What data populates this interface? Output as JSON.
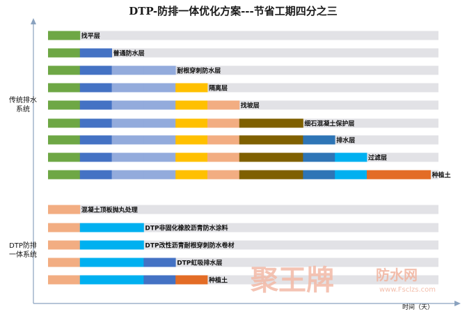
{
  "title": "DTP-防排一体优化方案---节省工期四分之三",
  "x_axis_label": "时间（天）",
  "group_labels": {
    "traditional": [
      "传统排水",
      "系统"
    ],
    "dtp": [
      "DTP防排",
      "一体系统"
    ]
  },
  "colors": {
    "track": "#e2e2e6",
    "axis": "#8aa2bf",
    "green": "#6ea745",
    "blue": "#4472c4",
    "lightblue": "#93abdc",
    "yellow": "#ffc000",
    "salmon": "#f2ad82",
    "olive": "#7f6000",
    "steel": "#2e75b6",
    "cyan": "#00b0f0",
    "orange": "#e36c26"
  },
  "watermark": {
    "brand": "聚王牌",
    "suffix": "防水网",
    "url": "www.Fsclzs.com"
  },
  "chart_data": {
    "type": "stacked-horizontal-bar (gantt)",
    "title": "DTP-防排一体优化方案---节省工期四分之三",
    "xlabel": "时间（天）",
    "ylabel": "",
    "groups": [
      {
        "name": "传统排水系统",
        "rows": [
          {
            "label": "找平层",
            "segments": [
              "green"
            ]
          },
          {
            "label": "普通防水层",
            "segments": [
              "green",
              "blue"
            ]
          },
          {
            "label": "耐根穿刺防水层",
            "segments": [
              "green",
              "blue",
              "lightblue",
              "lightblue"
            ]
          },
          {
            "label": "隔离层",
            "segments": [
              "green",
              "blue",
              "lightblue",
              "lightblue",
              "yellow"
            ]
          },
          {
            "label": "找坡层",
            "segments": [
              "green",
              "blue",
              "lightblue",
              "lightblue",
              "yellow",
              "salmon"
            ]
          },
          {
            "label": "细石混凝土保护层",
            "segments": [
              "green",
              "blue",
              "lightblue",
              "lightblue",
              "yellow",
              "salmon",
              "olive",
              "olive"
            ]
          },
          {
            "label": "排水层",
            "segments": [
              "green",
              "blue",
              "lightblue",
              "lightblue",
              "yellow",
              "salmon",
              "olive",
              "olive",
              "steel"
            ]
          },
          {
            "label": "过滤层",
            "segments": [
              "green",
              "blue",
              "lightblue",
              "lightblue",
              "yellow",
              "salmon",
              "olive",
              "olive",
              "steel",
              "cyan"
            ]
          },
          {
            "label": "种植土",
            "segments": [
              "green",
              "blue",
              "lightblue",
              "lightblue",
              "yellow",
              "salmon",
              "olive",
              "olive",
              "steel",
              "cyan",
              "orange",
              "orange"
            ]
          }
        ]
      },
      {
        "name": "DTP防排一体系统",
        "rows": [
          {
            "label": "混凝土顶板抛丸处理",
            "segments": [
              "salmon"
            ]
          },
          {
            "label": "DTP非固化橡胶沥青防水涂料",
            "segments": [
              "salmon",
              "cyan",
              "cyan"
            ]
          },
          {
            "label": "DTP改性沥青耐根穿刺防水卷材",
            "segments": [
              "salmon",
              "cyan",
              "cyan"
            ]
          },
          {
            "label": "DTP虹吸排水层",
            "segments": [
              "salmon",
              "cyan",
              "cyan",
              "blue"
            ]
          },
          {
            "label": "种植土",
            "segments": [
              "salmon",
              "cyan",
              "cyan",
              "blue",
              "orange"
            ]
          }
        ]
      }
    ],
    "grid": false,
    "legend": "none"
  }
}
